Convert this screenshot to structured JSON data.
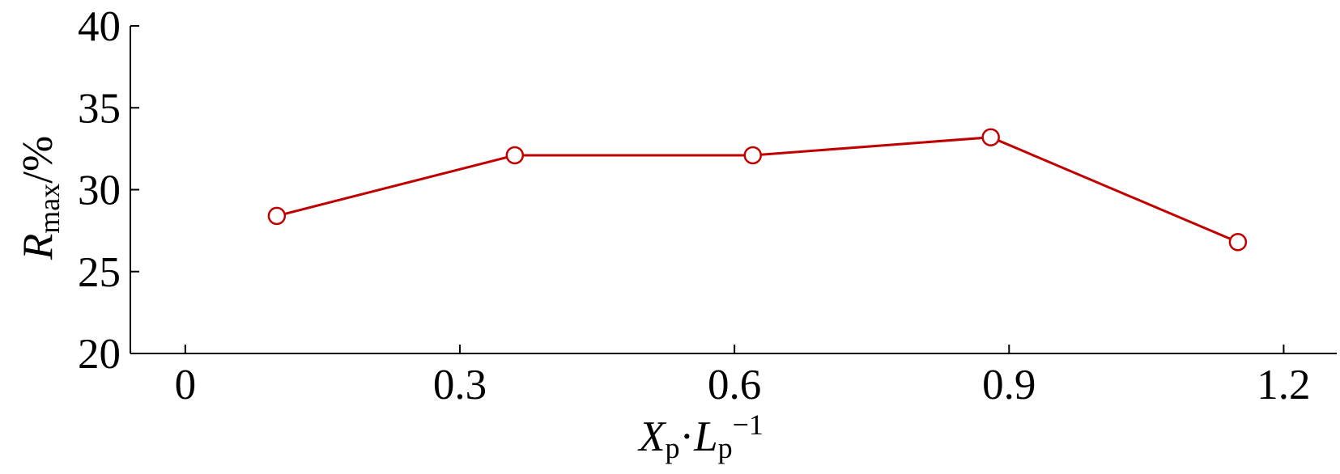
{
  "chart_data": {
    "type": "line",
    "x": [
      0.1,
      0.36,
      0.62,
      0.88,
      1.15
    ],
    "series": [
      {
        "color": "#c00000",
        "marker": "circle",
        "values": [
          28.4,
          32.1,
          32.1,
          33.2,
          26.8
        ]
      }
    ],
    "xlim": [
      -0.06,
      1.258
    ],
    "xticks": [
      0,
      0.3,
      0.6,
      0.9,
      1.2
    ],
    "ylim": [
      20,
      40
    ],
    "yticks": [
      20,
      25,
      30,
      35,
      40
    ],
    "grid": false,
    "xlabel": [
      {
        "text": "X",
        "role": "italic"
      },
      {
        "text": "p",
        "role": "sub"
      },
      {
        "text": "·",
        "role": "plain"
      },
      {
        "text": "L",
        "role": "italic"
      },
      {
        "text": "p",
        "role": "sub"
      },
      {
        "text": "−1",
        "role": "sup"
      }
    ],
    "ylabel": [
      {
        "text": "R",
        "role": "italic"
      },
      {
        "text": "max",
        "role": "sub"
      },
      {
        "text": "/%",
        "role": "plain"
      }
    ]
  }
}
